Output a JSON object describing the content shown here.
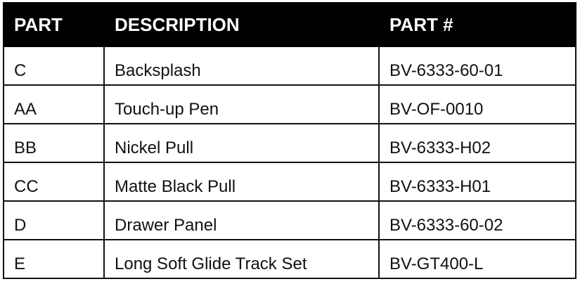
{
  "headers": [
    "PART",
    "DESCRIPTION",
    "PART #"
  ],
  "rows": [
    [
      "C",
      "Backsplash",
      "BV-6333-60-01"
    ],
    [
      "AA",
      "Touch-up Pen",
      "BV-OF-0010"
    ],
    [
      "BB",
      "Nickel Pull",
      "BV-6333-H02"
    ],
    [
      "CC",
      "Matte Black Pull",
      "BV-6333-H01"
    ],
    [
      "D",
      "Drawer Panel",
      "BV-6333-60-02"
    ],
    [
      "E",
      "Long Soft Glide Track Set",
      "BV-GT400-L"
    ]
  ]
}
